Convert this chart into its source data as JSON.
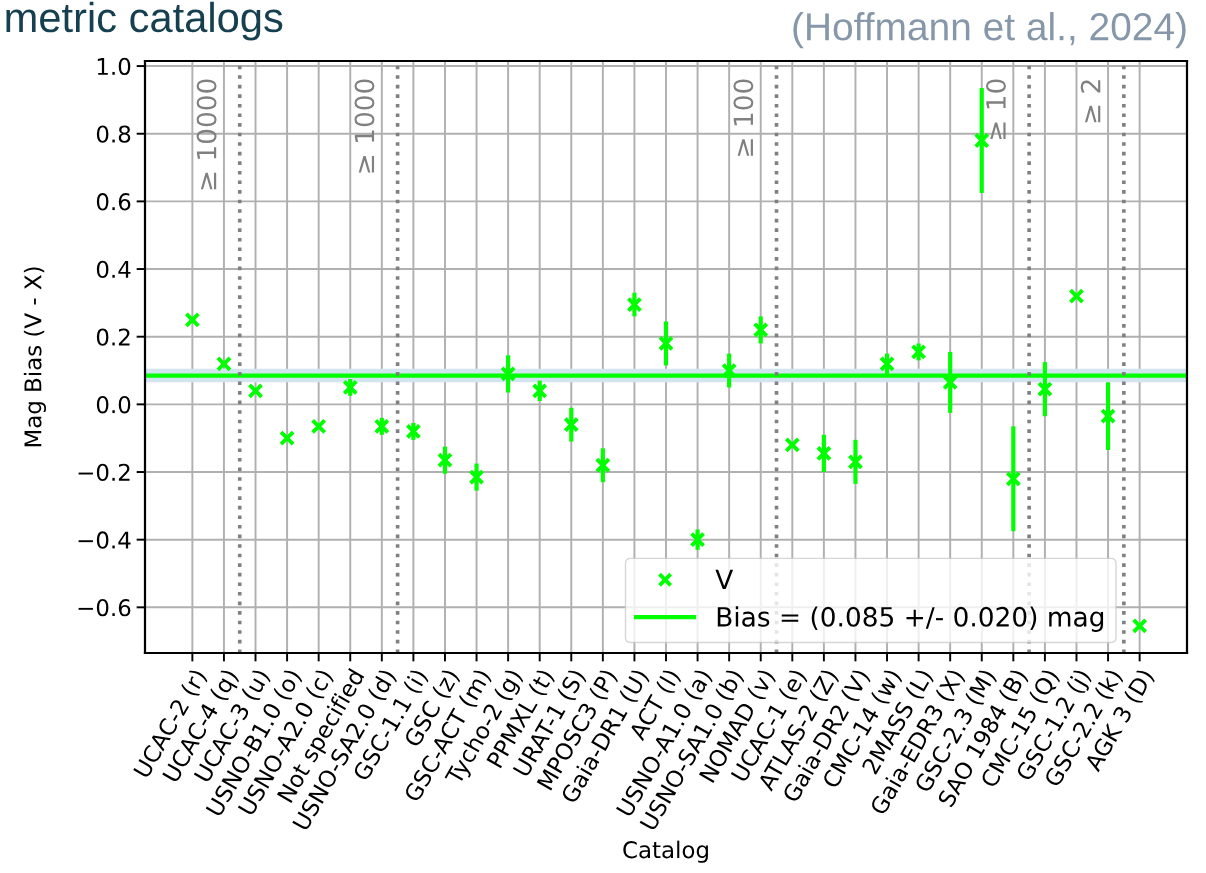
{
  "chart_data": {
    "type": "scatter",
    "title": "metric catalogs",
    "xlabel": "Catalog",
    "ylabel": "Mag Bias (V - X)",
    "annotations": [
      "(Hoffmann et al., 2024)",
      "≥ 10000",
      "≥ 1000",
      "≥ 100",
      "≥ 10",
      "≥ 2"
    ],
    "categories": [
      "UCAC-2 (r)",
      "UCAC-4 (q)",
      "UCAC-3 (u)",
      "USNO-B1.0 (o)",
      "USNO-A2.0 (c)",
      "Not specified",
      "USNO-SA2.0 (d)",
      "GSC-1.1 (i)",
      "GSC (z)",
      "GSC-ACT (m)",
      "Tycho-2 (g)",
      "PPMXL (t)",
      "URAT-1 (S)",
      "MPOSC3 (P)",
      "Gaia-DR1 (U)",
      "ACT (l)",
      "USNO-A1.0 (a)",
      "USNO-SA1.0 (b)",
      "NOMAD (v)",
      "UCAC-1 (e)",
      "ATLAS-2 (Z)",
      "Gaia-DR2 (V)",
      "CMC-14 (w)",
      "2MASS (L)",
      "Gaia-EDR3 (X)",
      "GSC-2.3 (M)",
      "SAO 1984 (B)",
      "CMC-15 (Q)",
      "GSC-1.2 (j)",
      "GSC-2.2 (k)",
      "AGK 3 (D)"
    ],
    "series": [
      {
        "name": "V",
        "color": "#00ff00",
        "values": [
          0.25,
          0.12,
          0.04,
          -0.1,
          -0.065,
          0.05,
          -0.065,
          -0.08,
          -0.165,
          -0.215,
          0.09,
          0.04,
          -0.06,
          -0.18,
          0.295,
          0.18,
          -0.4,
          0.1,
          0.22,
          -0.12,
          -0.145,
          -0.17,
          0.12,
          0.155,
          0.065,
          0.78,
          -0.22,
          0.045,
          0.32,
          -0.035,
          -0.655
        ],
        "errors": [
          null,
          null,
          null,
          null,
          null,
          0.025,
          0.025,
          0.025,
          0.04,
          0.04,
          0.055,
          0.03,
          0.05,
          0.05,
          0.035,
          0.065,
          0.03,
          0.05,
          0.04,
          null,
          0.055,
          0.065,
          0.03,
          0.025,
          0.09,
          0.155,
          0.155,
          0.08,
          null,
          0.1,
          null
        ]
      }
    ],
    "ref_lines": [
      {
        "axis": "y",
        "value": 0.085,
        "label": "Bias = (0.085 +/- 0.020) mag",
        "color": "#00ff00",
        "line_style": "solid"
      }
    ],
    "bands": [
      {
        "axis": "y",
        "from": 0.065,
        "to": 0.105,
        "color": "#d2e4f0"
      }
    ],
    "ylim": [
      -0.735,
      1.015
    ],
    "yticks": [
      {
        "value": -0.6,
        "label": "−0.6"
      },
      {
        "value": -0.4,
        "label": "−0.4"
      },
      {
        "value": -0.2,
        "label": "−0.2"
      },
      {
        "value": 0.0,
        "label": "0.0"
      },
      {
        "value": 0.2,
        "label": "0.2"
      },
      {
        "value": 0.4,
        "label": "0.4"
      },
      {
        "value": 0.6,
        "label": "0.6"
      },
      {
        "value": 0.8,
        "label": "0.8"
      },
      {
        "value": 1.0,
        "label": "1.0"
      }
    ],
    "grid": true,
    "legend": "bottom right",
    "marker": "cross"
  }
}
